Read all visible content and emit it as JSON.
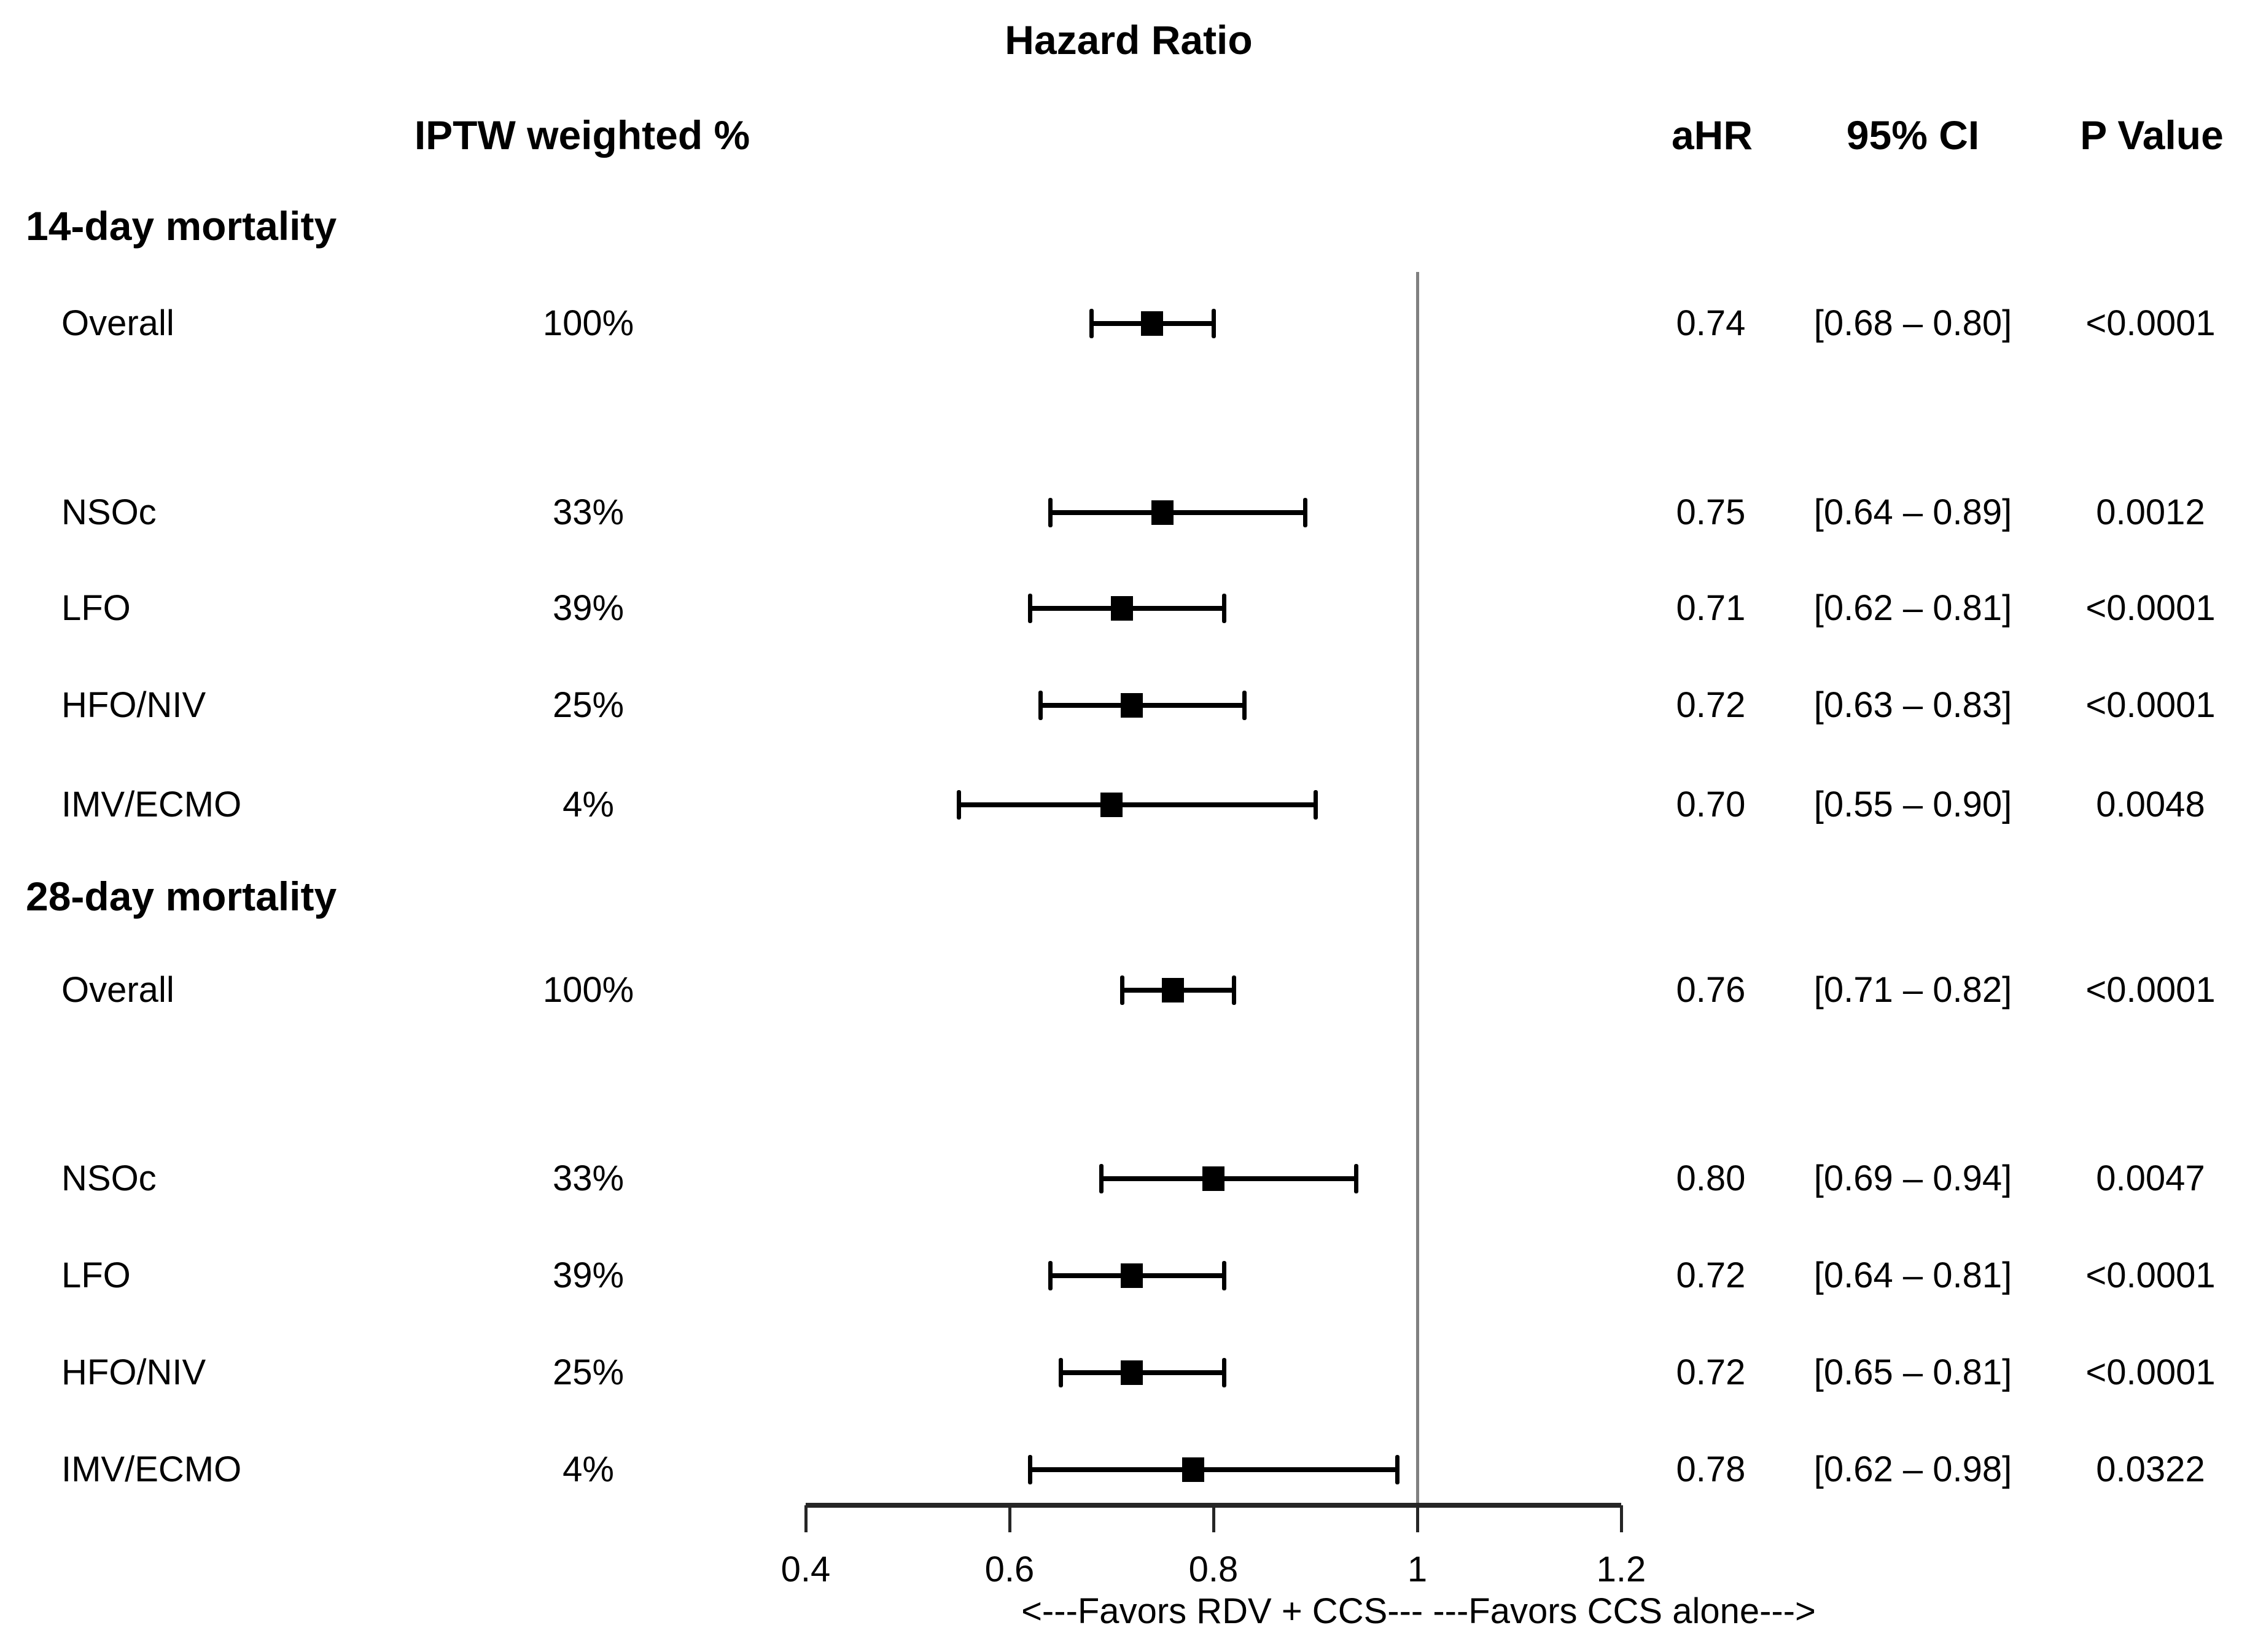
{
  "title": "Hazard Ratio",
  "columns": {
    "iptw": "IPTW weighted %",
    "ahr": "aHR",
    "ci": "95% CI",
    "p": "P Value"
  },
  "favors_label": "<---Favors RDV + CCS--- ---Favors CCS alone--->",
  "colors": {
    "text": "#000000",
    "ref_line": "#808080",
    "marker": "#000000",
    "axis": "#262626"
  },
  "chart_data": {
    "type": "forest",
    "title": "Hazard Ratio",
    "xlabel": "<---Favors RDV + CCS--- ---Favors CCS alone--->",
    "axis": {
      "min": 0.4,
      "max": 1.2,
      "reference_line": 1,
      "ticks": [
        {
          "value": 0.4,
          "label": "0.4"
        },
        {
          "value": 0.6,
          "label": "0.6"
        },
        {
          "value": 0.8,
          "label": "0.8"
        },
        {
          "value": 1,
          "label": "1"
        },
        {
          "value": 1.2,
          "label": "1.2"
        }
      ]
    },
    "sections": [
      {
        "label": "14-day mortality",
        "rows": [
          {
            "label": "Overall",
            "iptw_weighted_pct": "100%",
            "ahr": 0.74,
            "ci_low": 0.68,
            "ci_high": 0.8,
            "ahr_text": "0.74",
            "ci_text": "[0.68 – 0.80]",
            "p_value": "<0.0001"
          },
          {
            "label": "NSOc",
            "iptw_weighted_pct": "33%",
            "ahr": 0.75,
            "ci_low": 0.64,
            "ci_high": 0.89,
            "ahr_text": "0.75",
            "ci_text": "[0.64 – 0.89]",
            "p_value": "0.0012"
          },
          {
            "label": "LFO",
            "iptw_weighted_pct": "39%",
            "ahr": 0.71,
            "ci_low": 0.62,
            "ci_high": 0.81,
            "ahr_text": "0.71",
            "ci_text": "[0.62 – 0.81]",
            "p_value": "<0.0001"
          },
          {
            "label": "HFO/NIV",
            "iptw_weighted_pct": "25%",
            "ahr": 0.72,
            "ci_low": 0.63,
            "ci_high": 0.83,
            "ahr_text": "0.72",
            "ci_text": "[0.63 – 0.83]",
            "p_value": "<0.0001"
          },
          {
            "label": "IMV/ECMO",
            "iptw_weighted_pct": "4%",
            "ahr": 0.7,
            "ci_low": 0.55,
            "ci_high": 0.9,
            "ahr_text": "0.70",
            "ci_text": "[0.55 – 0.90]",
            "p_value": "0.0048"
          }
        ]
      },
      {
        "label": "28-day mortality",
        "rows": [
          {
            "label": "Overall",
            "iptw_weighted_pct": "100%",
            "ahr": 0.76,
            "ci_low": 0.71,
            "ci_high": 0.82,
            "ahr_text": "0.76",
            "ci_text": "[0.71 – 0.82]",
            "p_value": "<0.0001"
          },
          {
            "label": "NSOc",
            "iptw_weighted_pct": "33%",
            "ahr": 0.8,
            "ci_low": 0.69,
            "ci_high": 0.94,
            "ahr_text": "0.80",
            "ci_text": "[0.69 – 0.94]",
            "p_value": "0.0047"
          },
          {
            "label": "LFO",
            "iptw_weighted_pct": "39%",
            "ahr": 0.72,
            "ci_low": 0.64,
            "ci_high": 0.81,
            "ahr_text": "0.72",
            "ci_text": "[0.64 – 0.81]",
            "p_value": "<0.0001"
          },
          {
            "label": "HFO/NIV",
            "iptw_weighted_pct": "25%",
            "ahr": 0.72,
            "ci_low": 0.65,
            "ci_high": 0.81,
            "ahr_text": "0.72",
            "ci_text": "[0.65 – 0.81]",
            "p_value": "<0.0001"
          },
          {
            "label": "IMV/ECMO",
            "iptw_weighted_pct": "4%",
            "ahr": 0.78,
            "ci_low": 0.62,
            "ci_high": 0.98,
            "ahr_text": "0.78",
            "ci_text": "[0.62 – 0.98]",
            "p_value": "0.0322"
          }
        ]
      }
    ]
  }
}
